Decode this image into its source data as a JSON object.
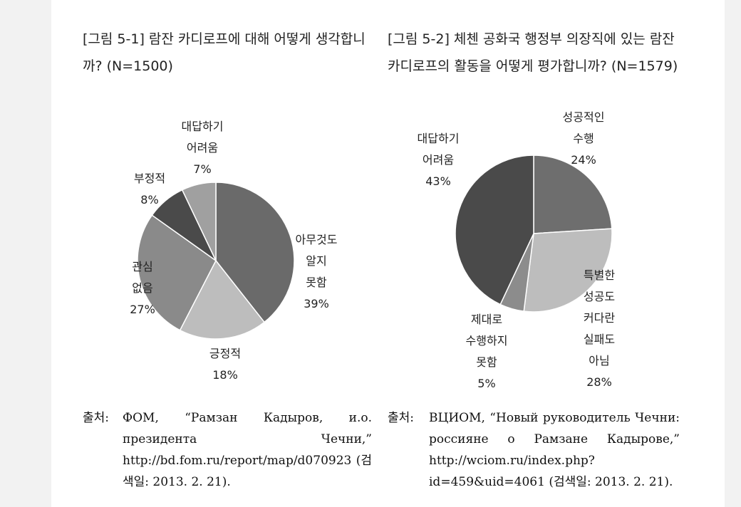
{
  "charts": [
    {
      "title": "[그림 5-1] 람잔 카디로프에 대해 어떻게 생각합니까? (N=1500)",
      "chart_data": {
        "type": "pie",
        "title": "[그림 5-1] 람잔 카디로프에 대해 어떻게 생각합니까? (N=1500)",
        "slices": [
          {
            "label": "아무것도 알지 못함",
            "value": 39,
            "value_label": "39%",
            "color": "#6a6a6a"
          },
          {
            "label": "긍정적",
            "value": 18,
            "value_label": "18%",
            "color": "#bdbdbd"
          },
          {
            "label": "관심 없음",
            "value": 27,
            "value_label": "27%",
            "color": "#8a8a8a"
          },
          {
            "label": "부정적",
            "value": 8,
            "value_label": "8%",
            "color": "#4a4a4a"
          },
          {
            "label": "대답하기 어려움",
            "value": 7,
            "value_label": "7%",
            "color": "#a0a0a0"
          }
        ]
      },
      "labels": [
        {
          "lines": [
            "아무것도",
            "알지",
            "못함"
          ],
          "value": "39%"
        },
        {
          "lines": [
            "긍정적"
          ],
          "value": "18%"
        },
        {
          "lines": [
            "관심",
            "없음"
          ],
          "value": "27%"
        },
        {
          "lines": [
            "부정적"
          ],
          "value": "8%"
        },
        {
          "lines": [
            "대답하기",
            "어려움"
          ],
          "value": "7%"
        }
      ],
      "source_key": "출처:",
      "source_text": "ФОМ, “Рамзан Кадыров, и.о. президента Чечни,” http://bd.fom.ru/report/map/d070923 (검색일: 2013. 2. 21)."
    },
    {
      "title": "[그림 5-2] 체첸 공화국 행정부 의장직에 있는 람잔 카디로프의 활동을 어떻게 평가합니까? (N=1579)",
      "chart_data": {
        "type": "pie",
        "title": "[그림 5-2] 체첸 공화국 행정부 의장직에 있는 람잔 카디로프의 활동을 어떻게 평가합니까? (N=1579)",
        "slices": [
          {
            "label": "성공적인 수행",
            "value": 24,
            "value_label": "24%",
            "color": "#6e6e6e"
          },
          {
            "label": "특별한 성공도 커다란 실패도 아님",
            "value": 28,
            "value_label": "28%",
            "color": "#bdbdbd"
          },
          {
            "label": "제대로 수행하지 못함",
            "value": 5,
            "value_label": "5%",
            "color": "#8c8c8c"
          },
          {
            "label": "대답하기 어려움",
            "value": 43,
            "value_label": "43%",
            "color": "#4a4a4a"
          }
        ]
      },
      "labels": [
        {
          "lines": [
            "성공적인",
            "수행"
          ],
          "value": "24%"
        },
        {
          "lines": [
            "특별한",
            "성공도",
            "커다란",
            "실패도",
            "아님"
          ],
          "value": "28%"
        },
        {
          "lines": [
            "제대로",
            "수행하지",
            "못함"
          ],
          "value": "5%"
        },
        {
          "lines": [
            "대답하기",
            "어려움"
          ],
          "value": "43%"
        }
      ],
      "source_key": "출처:",
      "source_text": "ВЦИОМ, “Новый руководитель Чечни: россияне о Рамзане Кадырове,” http://wciom.ru/index.php?id=459&uid=4061 (검색일: 2013. 2. 21)."
    }
  ]
}
